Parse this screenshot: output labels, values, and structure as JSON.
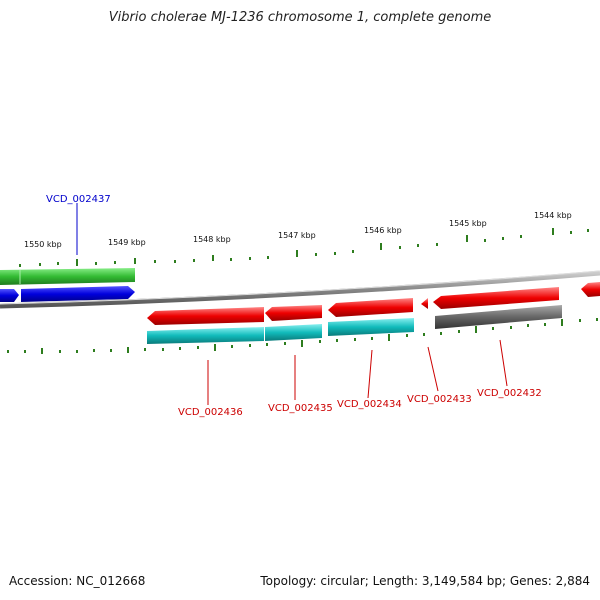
{
  "title": "Vibrio cholerae MJ-1236 chromosome 1, complete genome",
  "accession_text": "Accession: NC_012668",
  "topology_text": "Topology: circular; Length: 3,149,584 bp; Genes: 2,884",
  "kbp_labels": [
    "1550 kbp",
    "1549 kbp",
    "1548 kbp",
    "1547 kbp",
    "1546 kbp",
    "1545 kbp",
    "1544 kbp"
  ],
  "gene_labels": {
    "vcd_002437": "VCD_002437",
    "vcd_002436": "VCD_002436",
    "vcd_002435": "VCD_002435",
    "vcd_002434": "VCD_002434",
    "vcd_002433": "VCD_002433",
    "vcd_002432": "VCD_002432"
  },
  "colors": {
    "forward_label": "#0000cc",
    "reverse_label": "#cc0000",
    "green": "#33bb33",
    "blue": "#0000dd",
    "red": "#ee0000",
    "cyan": "#11bbbb",
    "gray": "#666666",
    "tick": "#2e7d1e",
    "backbone": "#888888"
  }
}
